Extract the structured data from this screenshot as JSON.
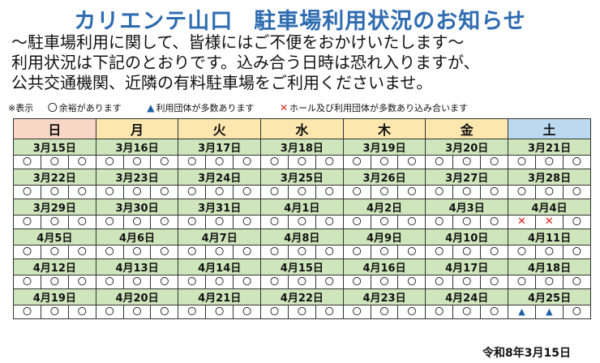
{
  "header": {
    "title_part1": "カリエンテ山口",
    "title_part2": "駐車場利用状況のお知らせ",
    "intro": [
      "～駐車場利用に関して、皆様にはご不便をおかけいたします～",
      "利用状況は下記のとおりです。込み合う日時は恐れ入りますが、",
      "公共交通機関、近隣の有料駐車場をご利用くださいませ。"
    ]
  },
  "legend": {
    "prefix": "※表示",
    "items": [
      {
        "symbol": "〇",
        "text": "余裕があります"
      },
      {
        "symbol": "▲",
        "text": "利用団体が多数あります"
      },
      {
        "symbol": "✕",
        "text": "ホール及び利用団体が多数あり込み合います"
      }
    ]
  },
  "weekdays": [
    "日",
    "月",
    "火",
    "水",
    "木",
    "金",
    "土"
  ],
  "weeks": [
    {
      "dates": [
        "3月15日",
        "3月16日",
        "3月17日",
        "3月18日",
        "3月19日",
        "3月20日",
        "3月21日"
      ],
      "marks": [
        [
          "o",
          "o",
          "o"
        ],
        [
          "o",
          "o",
          "o"
        ],
        [
          "o",
          "o",
          "o"
        ],
        [
          "o",
          "o",
          "o"
        ],
        [
          "o",
          "o",
          "o"
        ],
        [
          "o",
          "o",
          "o"
        ],
        [
          "o",
          "o",
          "o"
        ]
      ]
    },
    {
      "dates": [
        "3月22日",
        "3月23日",
        "3月24日",
        "3月25日",
        "3月26日",
        "3月27日",
        "3月28日"
      ],
      "marks": [
        [
          "o",
          "o",
          "o"
        ],
        [
          "o",
          "o",
          "o"
        ],
        [
          "o",
          "o",
          "o"
        ],
        [
          "o",
          "o",
          "o"
        ],
        [
          "o",
          "o",
          "o"
        ],
        [
          "o",
          "o",
          "o"
        ],
        [
          "o",
          "o",
          "o"
        ]
      ]
    },
    {
      "dates": [
        "3月29日",
        "3月30日",
        "3月31日",
        "4月1日",
        "4月2日",
        "4月3日",
        "4月4日"
      ],
      "marks": [
        [
          "o",
          "o",
          "o"
        ],
        [
          "o",
          "o",
          "o"
        ],
        [
          "o",
          "o",
          "o"
        ],
        [
          "o",
          "o",
          "o"
        ],
        [
          "o",
          "o",
          "o"
        ],
        [
          "o",
          "o",
          "o"
        ],
        [
          "x",
          "x",
          "o"
        ]
      ]
    },
    {
      "dates": [
        "4月5日",
        "4月6日",
        "4月7日",
        "4月8日",
        "4月9日",
        "4月10日",
        "4月11日"
      ],
      "marks": [
        [
          "o",
          "o",
          "o"
        ],
        [
          "o",
          "o",
          "o"
        ],
        [
          "o",
          "o",
          "o"
        ],
        [
          "o",
          "o",
          "o"
        ],
        [
          "o",
          "o",
          "o"
        ],
        [
          "o",
          "o",
          "o"
        ],
        [
          "o",
          "o",
          "o"
        ]
      ]
    },
    {
      "dates": [
        "4月12日",
        "4月13日",
        "4月14日",
        "4月15日",
        "4月16日",
        "4月17日",
        "4月18日"
      ],
      "marks": [
        [
          "o",
          "o",
          "o"
        ],
        [
          "o",
          "o",
          "o"
        ],
        [
          "o",
          "o",
          "o"
        ],
        [
          "o",
          "o",
          "o"
        ],
        [
          "o",
          "o",
          "o"
        ],
        [
          "o",
          "o",
          "o"
        ],
        [
          "o",
          "o",
          "o"
        ]
      ]
    },
    {
      "dates": [
        "4月19日",
        "4月20日",
        "4月21日",
        "4月22日",
        "4月23日",
        "4月24日",
        "4月25日"
      ],
      "marks": [
        [
          "o",
          "o",
          "o"
        ],
        [
          "o",
          "o",
          "o"
        ],
        [
          "o",
          "o",
          "o"
        ],
        [
          "o",
          "o",
          "o"
        ],
        [
          "o",
          "o",
          "o"
        ],
        [
          "o",
          "o",
          "o"
        ],
        [
          "t",
          "t",
          "o"
        ]
      ]
    }
  ],
  "symbols": {
    "o": "〇",
    "t": "▲",
    "x": "✕"
  },
  "footer": {
    "date": "令和8年3月15日"
  },
  "colors": {
    "title": "#2f6cb0",
    "sunday_header": "#f9d7c6",
    "weekday_header": "#fce7ae",
    "saturday_header": "#bcd9f2",
    "date_row": "#cfe6bc",
    "triangle": "#1f5fa6",
    "cross": "#e0201b"
  }
}
